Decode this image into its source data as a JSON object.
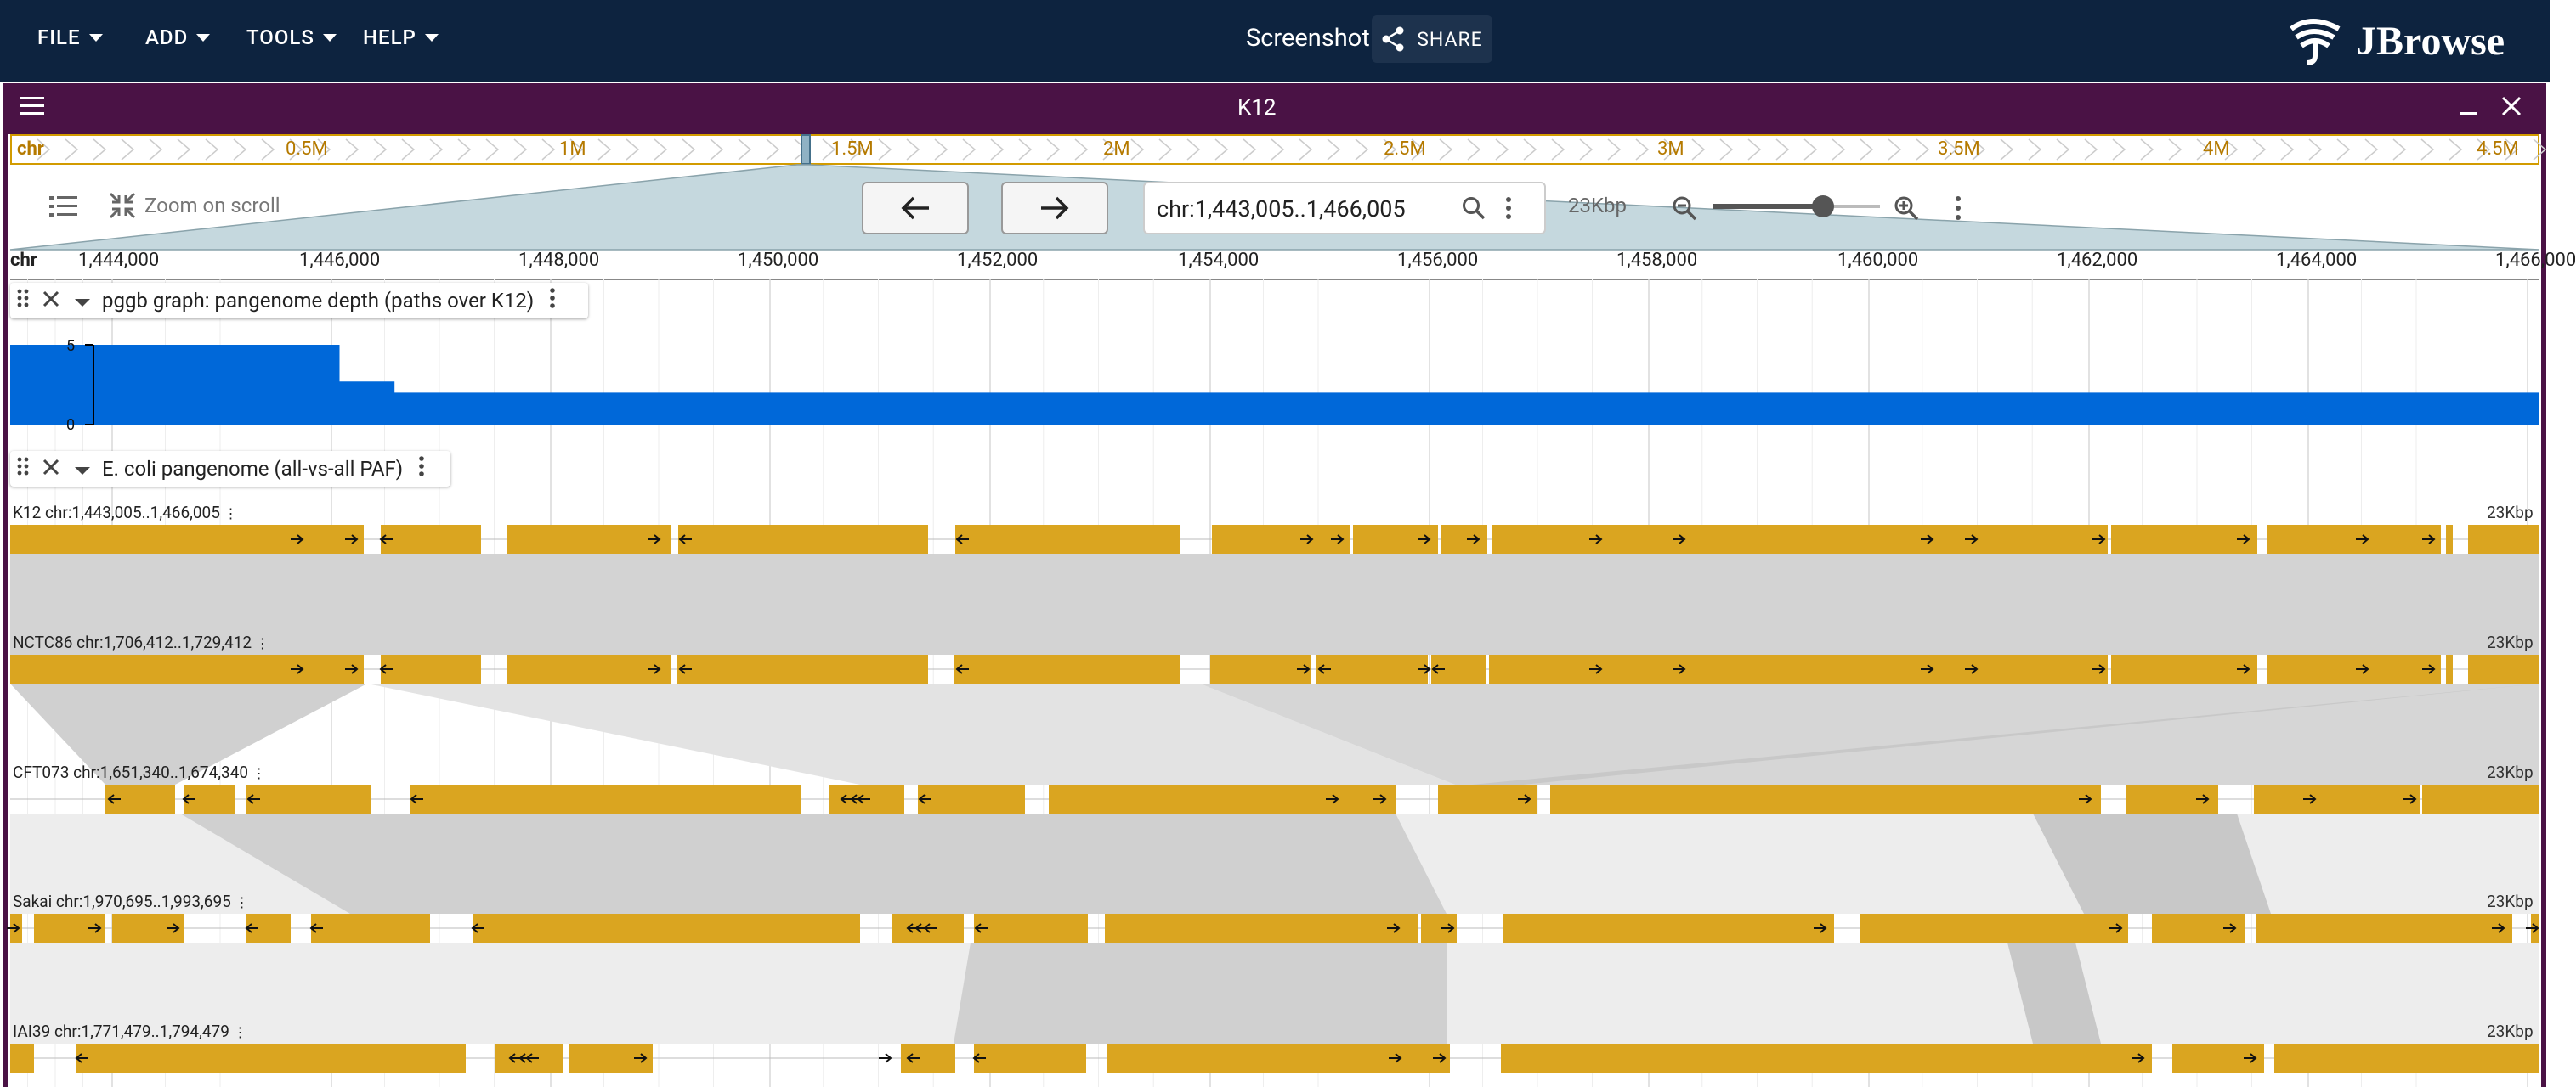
{
  "app": {
    "menus": [
      "FILE",
      "ADD",
      "TOOLS",
      "HELP"
    ],
    "screenshot_label": "Screenshot",
    "share_label": "SHARE",
    "logo_text": "JBrowse",
    "accent_color": "#0d233f"
  },
  "view": {
    "title": "K12",
    "header_color": "#4a1245",
    "overview": {
      "refname": "chr",
      "ticks": [
        "0.5M",
        "1M",
        "1.5M",
        "2M",
        "2.5M",
        "3M",
        "3.5M",
        "4M",
        "4.5M"
      ]
    },
    "toolbar": {
      "zoom_on_scroll_label": "Zoom on scroll",
      "locstring": "chr:1,443,005..1,466,005",
      "span_label": "23Kbp",
      "zoom_level": 0.66
    },
    "ruler": {
      "refname": "chr",
      "ticks": [
        "1,444,000",
        "1,446,000",
        "1,448,000",
        "1,450,000",
        "1,452,000",
        "1,454,000",
        "1,456,000",
        "1,458,000",
        "1,460,000",
        "1,462,000",
        "1,464,000",
        "1,466,000"
      ]
    }
  },
  "tracks": {
    "depth": {
      "name": "pggb graph: pangenome depth (paths over K12)",
      "y_max_label": "5",
      "y_min_label": "0",
      "color": "#0068d9",
      "chart_data": {
        "type": "area",
        "ylim": [
          0,
          5
        ],
        "points": [
          {
            "x": 1443005,
            "y": 5
          },
          {
            "x": 1446000,
            "y": 5
          },
          {
            "x": 1446000,
            "y": 2.7
          },
          {
            "x": 1446500,
            "y": 2.7
          },
          {
            "x": 1446500,
            "y": 2
          },
          {
            "x": 1466005,
            "y": 2
          }
        ]
      }
    },
    "synteny": {
      "name": "E. coli pangenome (all-vs-all PAF)",
      "feature_color": "#daa520",
      "genomes": [
        {
          "label": "K12 chr:1,443,005..1,466,005",
          "span": "23Kbp"
        },
        {
          "label": "NCTC86 chr:1,706,412..1,729,412",
          "span": "23Kbp"
        },
        {
          "label": "CFT073 chr:1,651,340..1,674,340",
          "span": "23Kbp"
        },
        {
          "label": "Sakai chr:1,970,695..1,993,695",
          "span": "23Kbp"
        },
        {
          "label": "IAI39 chr:1,771,479..1,794,479",
          "span": "23Kbp"
        }
      ]
    }
  }
}
